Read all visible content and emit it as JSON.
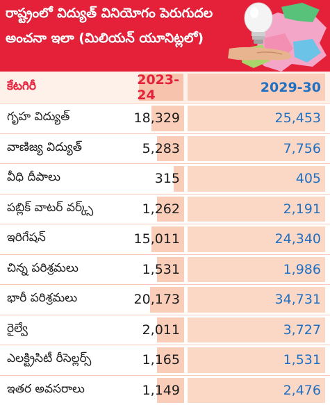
{
  "header": {
    "title_line1": "రాష్ట్రంలో విద్యుత్ వినియోగం పెరుగుదల",
    "title_line2": "అంచనా ఇలా (మిలియన్ యూనిట్లలో)"
  },
  "table": {
    "columns": [
      "కేటగిరీ",
      "2023-24",
      "2029-30"
    ],
    "rows": [
      {
        "category": "గృహ విద్యుత్",
        "v2023": "18,329",
        "v2029": "25,453"
      },
      {
        "category": "వాణిజ్య విద్యుత్",
        "v2023": "5,283",
        "v2029": "7,756"
      },
      {
        "category": "వీధి దీపాలు",
        "v2023": "315",
        "v2029": "405"
      },
      {
        "category": "పబ్లిక్ వాటర్ వర్క్స్",
        "v2023": "1,262",
        "v2029": "2,191"
      },
      {
        "category": "ఇరిగేషన్",
        "v2023": "15,011",
        "v2029": "24,340"
      },
      {
        "category": "చిన్న పరిశ్రమలు",
        "v2023": "1,531",
        "v2029": "1,986"
      },
      {
        "category": "భారీ పరిశ్రమలు",
        "v2023": "20,173",
        "v2029": "34,731"
      },
      {
        "category": "రైల్వే",
        "v2023": "2,011",
        "v2029": "3,727"
      },
      {
        "category": "ఎలక్ట్రిసిటీ రీసెల్లర్స్",
        "v2023": "1,165",
        "v2029": "1,531"
      },
      {
        "category": "ఇతర అవసరాలు",
        "v2023": "1,149",
        "v2029": "2,476"
      }
    ]
  },
  "colors": {
    "header_red": "#e5213a",
    "value_blue": "#1f6fc2",
    "cell_peach": "#f9cdb8"
  },
  "icons": [
    "light-bulb-icon",
    "hand-icon",
    "state-map-graphic"
  ]
}
